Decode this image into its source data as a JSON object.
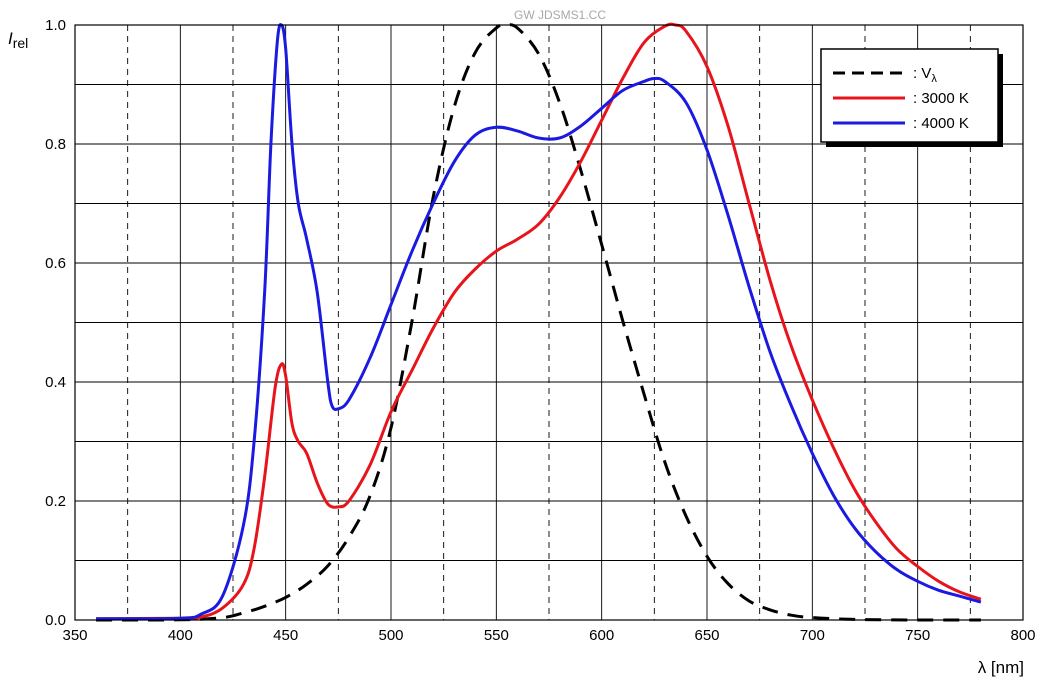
{
  "watermark": "GW JDSMS1.CC",
  "chart_data": {
    "type": "line",
    "title": "",
    "ylabel": {
      "main": "I",
      "sub": "rel"
    },
    "xlabel": "λ [nm]",
    "xlim": [
      350,
      800
    ],
    "ylim": [
      0,
      1.0
    ],
    "xticks": [
      350,
      400,
      450,
      500,
      550,
      600,
      650,
      700,
      750,
      800
    ],
    "xtick_labels": [
      "350",
      "400",
      "450",
      "500",
      "550",
      "600",
      "650",
      "700",
      "750",
      "800"
    ],
    "yticks": [
      0,
      0.2,
      0.4,
      0.6,
      0.8,
      1.0
    ],
    "ytick_labels": [
      "0.0",
      "0.2",
      "0.4",
      "0.6",
      "0.8",
      "1.0"
    ],
    "grid": {
      "major": true,
      "x_minor_dashed": true,
      "y_minor": true
    },
    "legend": {
      "placement": "top-right"
    },
    "series": [
      {
        "name": ": V",
        "name_sub": "λ",
        "color": "#000000",
        "style": "dashed",
        "x": [
          360,
          400,
          420,
          430,
          440,
          450,
          460,
          470,
          480,
          490,
          500,
          510,
          520,
          530,
          540,
          550,
          555,
          560,
          570,
          580,
          590,
          600,
          610,
          620,
          630,
          640,
          650,
          660,
          670,
          680,
          690,
          700,
          720,
          750,
          780
        ],
        "y": [
          0.0,
          0.0004,
          0.004,
          0.012,
          0.023,
          0.038,
          0.06,
          0.091,
          0.139,
          0.208,
          0.323,
          0.503,
          0.71,
          0.862,
          0.954,
          0.995,
          1.0,
          0.995,
          0.952,
          0.87,
          0.757,
          0.631,
          0.503,
          0.381,
          0.265,
          0.175,
          0.107,
          0.061,
          0.032,
          0.017,
          0.008,
          0.004,
          0.001,
          0.0,
          0.0
        ]
      },
      {
        "name": ": 3000 K",
        "color": "#e8141c",
        "style": "solid",
        "x": [
          360,
          400,
          410,
          420,
          430,
          435,
          440,
          445,
          448,
          450,
          453,
          456,
          460,
          465,
          470,
          475,
          480,
          490,
          500,
          510,
          520,
          530,
          540,
          550,
          560,
          570,
          580,
          590,
          600,
          610,
          620,
          630,
          635,
          640,
          650,
          660,
          670,
          680,
          690,
          700,
          710,
          720,
          730,
          740,
          750,
          760,
          770,
          780
        ],
        "y": [
          0.002,
          0.003,
          0.005,
          0.02,
          0.06,
          0.12,
          0.24,
          0.39,
          0.43,
          0.41,
          0.33,
          0.3,
          0.28,
          0.23,
          0.195,
          0.19,
          0.2,
          0.26,
          0.35,
          0.42,
          0.49,
          0.55,
          0.59,
          0.62,
          0.64,
          0.665,
          0.71,
          0.77,
          0.84,
          0.91,
          0.97,
          0.998,
          1.0,
          0.99,
          0.93,
          0.83,
          0.7,
          0.57,
          0.46,
          0.37,
          0.29,
          0.22,
          0.165,
          0.12,
          0.09,
          0.065,
          0.047,
          0.035
        ]
      },
      {
        "name": ": 4000 K",
        "color": "#1a1ae0",
        "style": "solid",
        "x": [
          360,
          400,
          410,
          420,
          430,
          435,
          440,
          443,
          446,
          448,
          450,
          453,
          456,
          460,
          465,
          470,
          472,
          475,
          480,
          490,
          500,
          510,
          520,
          530,
          540,
          550,
          560,
          570,
          580,
          590,
          600,
          610,
          620,
          625,
          630,
          640,
          650,
          660,
          670,
          680,
          690,
          700,
          710,
          720,
          730,
          740,
          750,
          760,
          770,
          780
        ],
        "y": [
          0.002,
          0.003,
          0.01,
          0.04,
          0.16,
          0.3,
          0.55,
          0.8,
          0.97,
          1.0,
          0.96,
          0.8,
          0.7,
          0.64,
          0.55,
          0.4,
          0.36,
          0.355,
          0.37,
          0.44,
          0.53,
          0.62,
          0.7,
          0.77,
          0.815,
          0.828,
          0.822,
          0.81,
          0.81,
          0.83,
          0.86,
          0.89,
          0.905,
          0.91,
          0.905,
          0.87,
          0.79,
          0.68,
          0.56,
          0.45,
          0.36,
          0.28,
          0.21,
          0.155,
          0.115,
          0.085,
          0.065,
          0.05,
          0.04,
          0.03
        ]
      }
    ]
  }
}
